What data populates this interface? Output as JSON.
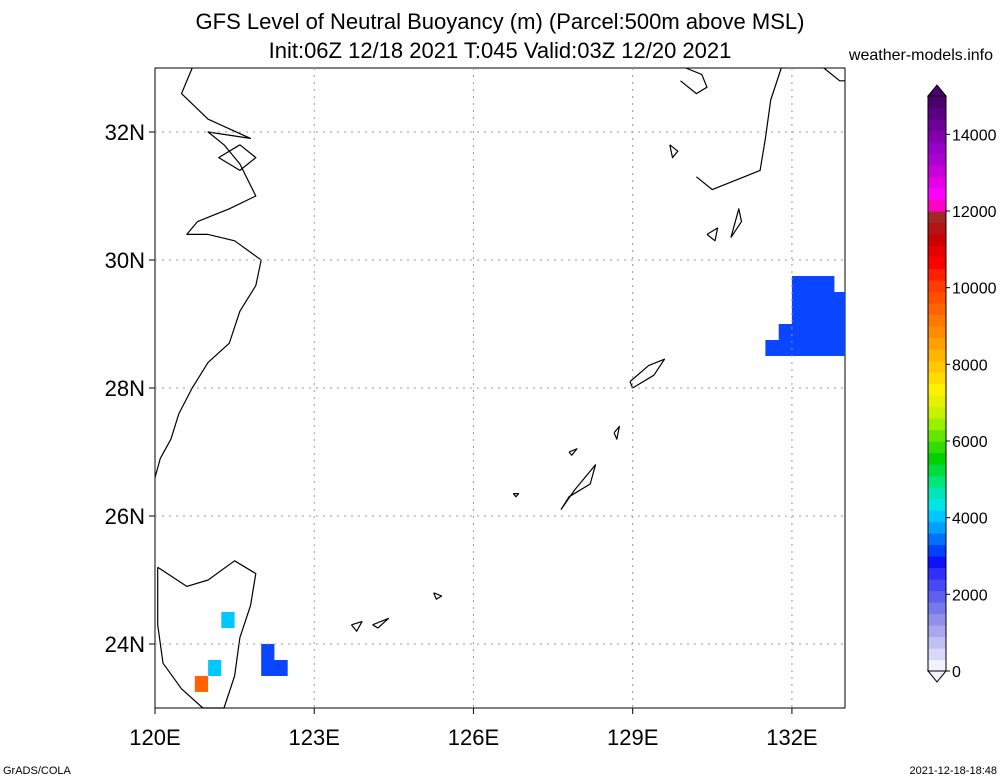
{
  "title_line1": "GFS Level of Neutral Buoyancy (m) (Parcel:500m above MSL)",
  "title_line2": "Init:06Z 12/18 2021 T:045 Valid:03Z 12/20 2021",
  "site": "weather-models.info",
  "footer_left": "GrADS/COLA",
  "footer_right": "2021-12-18-18:48",
  "map": {
    "lon_range": [
      120,
      133
    ],
    "lat_range": [
      23,
      33
    ],
    "lon_ticks": [
      {
        "value": 120,
        "label": "120E"
      },
      {
        "value": 123,
        "label": "123E"
      },
      {
        "value": 126,
        "label": "126E"
      },
      {
        "value": 129,
        "label": "129E"
      },
      {
        "value": 132,
        "label": "132E"
      }
    ],
    "lat_ticks": [
      {
        "value": 24,
        "label": "24N"
      },
      {
        "value": 26,
        "label": "26N"
      },
      {
        "value": 28,
        "label": "28N"
      },
      {
        "value": 30,
        "label": "30N"
      },
      {
        "value": 32,
        "label": "32N"
      }
    ],
    "grid": true
  },
  "colorbar": {
    "min": 0,
    "max": 15000,
    "labels": [
      "0",
      "2000",
      "4000",
      "6000",
      "8000",
      "10000",
      "12000",
      "14000"
    ],
    "colors": [
      "#f2f2ff",
      "#d8d8f8",
      "#c0c0f2",
      "#a8a8ee",
      "#9090ea",
      "#7878e8",
      "#6060f0",
      "#4848f4",
      "#3030f8",
      "#1010ff",
      "#0040ff",
      "#0070ff",
      "#00a0ff",
      "#00c8ff",
      "#00e6e6",
      "#00e6b4",
      "#00e678",
      "#00dc3c",
      "#00d200",
      "#32dc00",
      "#64e600",
      "#96f000",
      "#c8f000",
      "#e6f000",
      "#fff000",
      "#ffdc00",
      "#ffc800",
      "#ffb400",
      "#ffa000",
      "#ff8c00",
      "#ff7800",
      "#ff6400",
      "#ff5000",
      "#ff3c00",
      "#ff2000",
      "#ff0000",
      "#e60000",
      "#cc0000",
      "#b41414",
      "#a02828",
      "#ff00c8",
      "#ff00ff",
      "#e600e6",
      "#c800dc",
      "#aa00d2",
      "#9600c8",
      "#8200aa",
      "#6e0096",
      "#5a0082",
      "#4b006e"
    ]
  },
  "shaded_areas": [
    {
      "name": "blue-patch-east",
      "color": "#0a46ff",
      "polygon": [
        [
          132.0,
          29.75
        ],
        [
          132.8,
          29.75
        ],
        [
          132.8,
          29.5
        ],
        [
          133.0,
          29.5
        ],
        [
          133.0,
          28.5
        ],
        [
          131.5,
          28.5
        ],
        [
          131.5,
          28.75
        ],
        [
          131.75,
          28.75
        ],
        [
          131.75,
          29.0
        ],
        [
          132.0,
          29.0
        ]
      ]
    },
    {
      "name": "blue-patch-southwest",
      "color": "#0a46ff",
      "polygon": [
        [
          122.0,
          24.0
        ],
        [
          122.25,
          24.0
        ],
        [
          122.25,
          23.75
        ],
        [
          122.5,
          23.75
        ],
        [
          122.5,
          23.5
        ],
        [
          122.0,
          23.5
        ]
      ]
    },
    {
      "name": "rainbow-patch-1",
      "color": "#00c8ff",
      "polygon": [
        [
          121.25,
          24.5
        ],
        [
          121.5,
          24.5
        ],
        [
          121.5,
          24.25
        ],
        [
          121.25,
          24.25
        ]
      ]
    },
    {
      "name": "rainbow-patch-2",
      "color": "#00c8ff",
      "polygon": [
        [
          121.0,
          23.75
        ],
        [
          121.25,
          23.75
        ],
        [
          121.25,
          23.5
        ],
        [
          121.0,
          23.5
        ]
      ]
    },
    {
      "name": "rainbow-patch-3",
      "color": "#ff6400",
      "polygon": [
        [
          120.75,
          23.5
        ],
        [
          121.0,
          23.5
        ],
        [
          121.0,
          23.25
        ],
        [
          120.75,
          23.25
        ]
      ]
    }
  ],
  "coastlines": [
    [
      [
        120.0,
        26.6
      ],
      [
        120.1,
        26.9
      ],
      [
        120.3,
        27.2
      ],
      [
        120.45,
        27.6
      ],
      [
        120.7,
        28.0
      ],
      [
        121.0,
        28.4
      ],
      [
        121.4,
        28.7
      ],
      [
        121.6,
        29.2
      ],
      [
        121.9,
        29.6
      ],
      [
        122.0,
        30.0
      ],
      [
        121.5,
        30.3
      ],
      [
        121.0,
        30.4
      ],
      [
        120.6,
        30.4
      ],
      [
        120.8,
        30.6
      ],
      [
        121.4,
        30.8
      ],
      [
        121.9,
        31.0
      ],
      [
        121.6,
        31.5
      ],
      [
        121.3,
        31.8
      ],
      [
        121.0,
        32.0
      ],
      [
        121.8,
        31.9
      ],
      [
        121.0,
        32.2
      ],
      [
        120.5,
        32.6
      ],
      [
        120.7,
        33.0
      ]
    ],
    [
      [
        121.6,
        31.8
      ],
      [
        121.9,
        31.6
      ],
      [
        121.6,
        31.4
      ],
      [
        121.2,
        31.6
      ],
      [
        121.6,
        31.8
      ]
    ],
    [
      [
        120.05,
        25.2
      ],
      [
        120.6,
        24.9
      ],
      [
        121.0,
        25.0
      ],
      [
        121.5,
        25.3
      ],
      [
        121.9,
        25.1
      ],
      [
        121.8,
        24.6
      ],
      [
        121.6,
        24.1
      ],
      [
        121.5,
        23.5
      ],
      [
        121.3,
        23.0
      ],
      [
        120.9,
        23.0
      ],
      [
        120.5,
        23.3
      ],
      [
        120.15,
        23.7
      ],
      [
        120.05,
        24.3
      ],
      [
        120.05,
        25.2
      ]
    ],
    [
      [
        127.65,
        26.1
      ],
      [
        127.9,
        26.4
      ],
      [
        128.3,
        26.8
      ],
      [
        128.2,
        26.5
      ],
      [
        127.8,
        26.3
      ],
      [
        127.65,
        26.1
      ]
    ],
    [
      [
        128.95,
        28.1
      ],
      [
        129.3,
        28.35
      ],
      [
        129.6,
        28.45
      ],
      [
        129.4,
        28.2
      ],
      [
        129.0,
        28.0
      ],
      [
        128.95,
        28.1
      ]
    ],
    [
      [
        124.1,
        24.3
      ],
      [
        124.4,
        24.4
      ],
      [
        124.2,
        24.25
      ],
      [
        124.1,
        24.3
      ]
    ],
    [
      [
        123.7,
        24.3
      ],
      [
        123.9,
        24.35
      ],
      [
        123.8,
        24.2
      ],
      [
        123.7,
        24.3
      ]
    ],
    [
      [
        125.25,
        24.8
      ],
      [
        125.4,
        24.75
      ],
      [
        125.3,
        24.7
      ],
      [
        125.25,
        24.8
      ]
    ],
    [
      [
        126.75,
        26.35
      ],
      [
        126.85,
        26.35
      ],
      [
        126.8,
        26.3
      ],
      [
        126.75,
        26.35
      ]
    ],
    [
      [
        128.65,
        27.3
      ],
      [
        128.75,
        27.4
      ],
      [
        128.7,
        27.2
      ],
      [
        128.65,
        27.3
      ]
    ],
    [
      [
        127.8,
        27.0
      ],
      [
        127.95,
        27.05
      ],
      [
        127.85,
        26.95
      ],
      [
        127.8,
        27.0
      ]
    ],
    [
      [
        130.4,
        30.4
      ],
      [
        130.6,
        30.5
      ],
      [
        130.55,
        30.3
      ],
      [
        130.4,
        30.4
      ]
    ],
    [
      [
        130.85,
        30.35
      ],
      [
        131.0,
        30.8
      ],
      [
        131.05,
        30.6
      ],
      [
        130.85,
        30.35
      ]
    ],
    [
      [
        130.2,
        31.3
      ],
      [
        130.5,
        31.1
      ],
      [
        130.8,
        31.2
      ],
      [
        131.1,
        31.3
      ],
      [
        131.4,
        31.4
      ],
      [
        131.5,
        31.9
      ],
      [
        131.6,
        32.5
      ],
      [
        131.8,
        33.0
      ]
    ],
    [
      [
        129.9,
        32.8
      ],
      [
        130.2,
        32.6
      ],
      [
        130.4,
        32.7
      ],
      [
        130.3,
        32.9
      ],
      [
        130.0,
        33.0
      ]
    ],
    [
      [
        132.6,
        33.0
      ],
      [
        132.9,
        32.8
      ],
      [
        133.0,
        32.8
      ]
    ],
    [
      [
        129.7,
        31.8
      ],
      [
        129.85,
        31.7
      ],
      [
        129.75,
        31.6
      ],
      [
        129.7,
        31.8
      ]
    ]
  ]
}
